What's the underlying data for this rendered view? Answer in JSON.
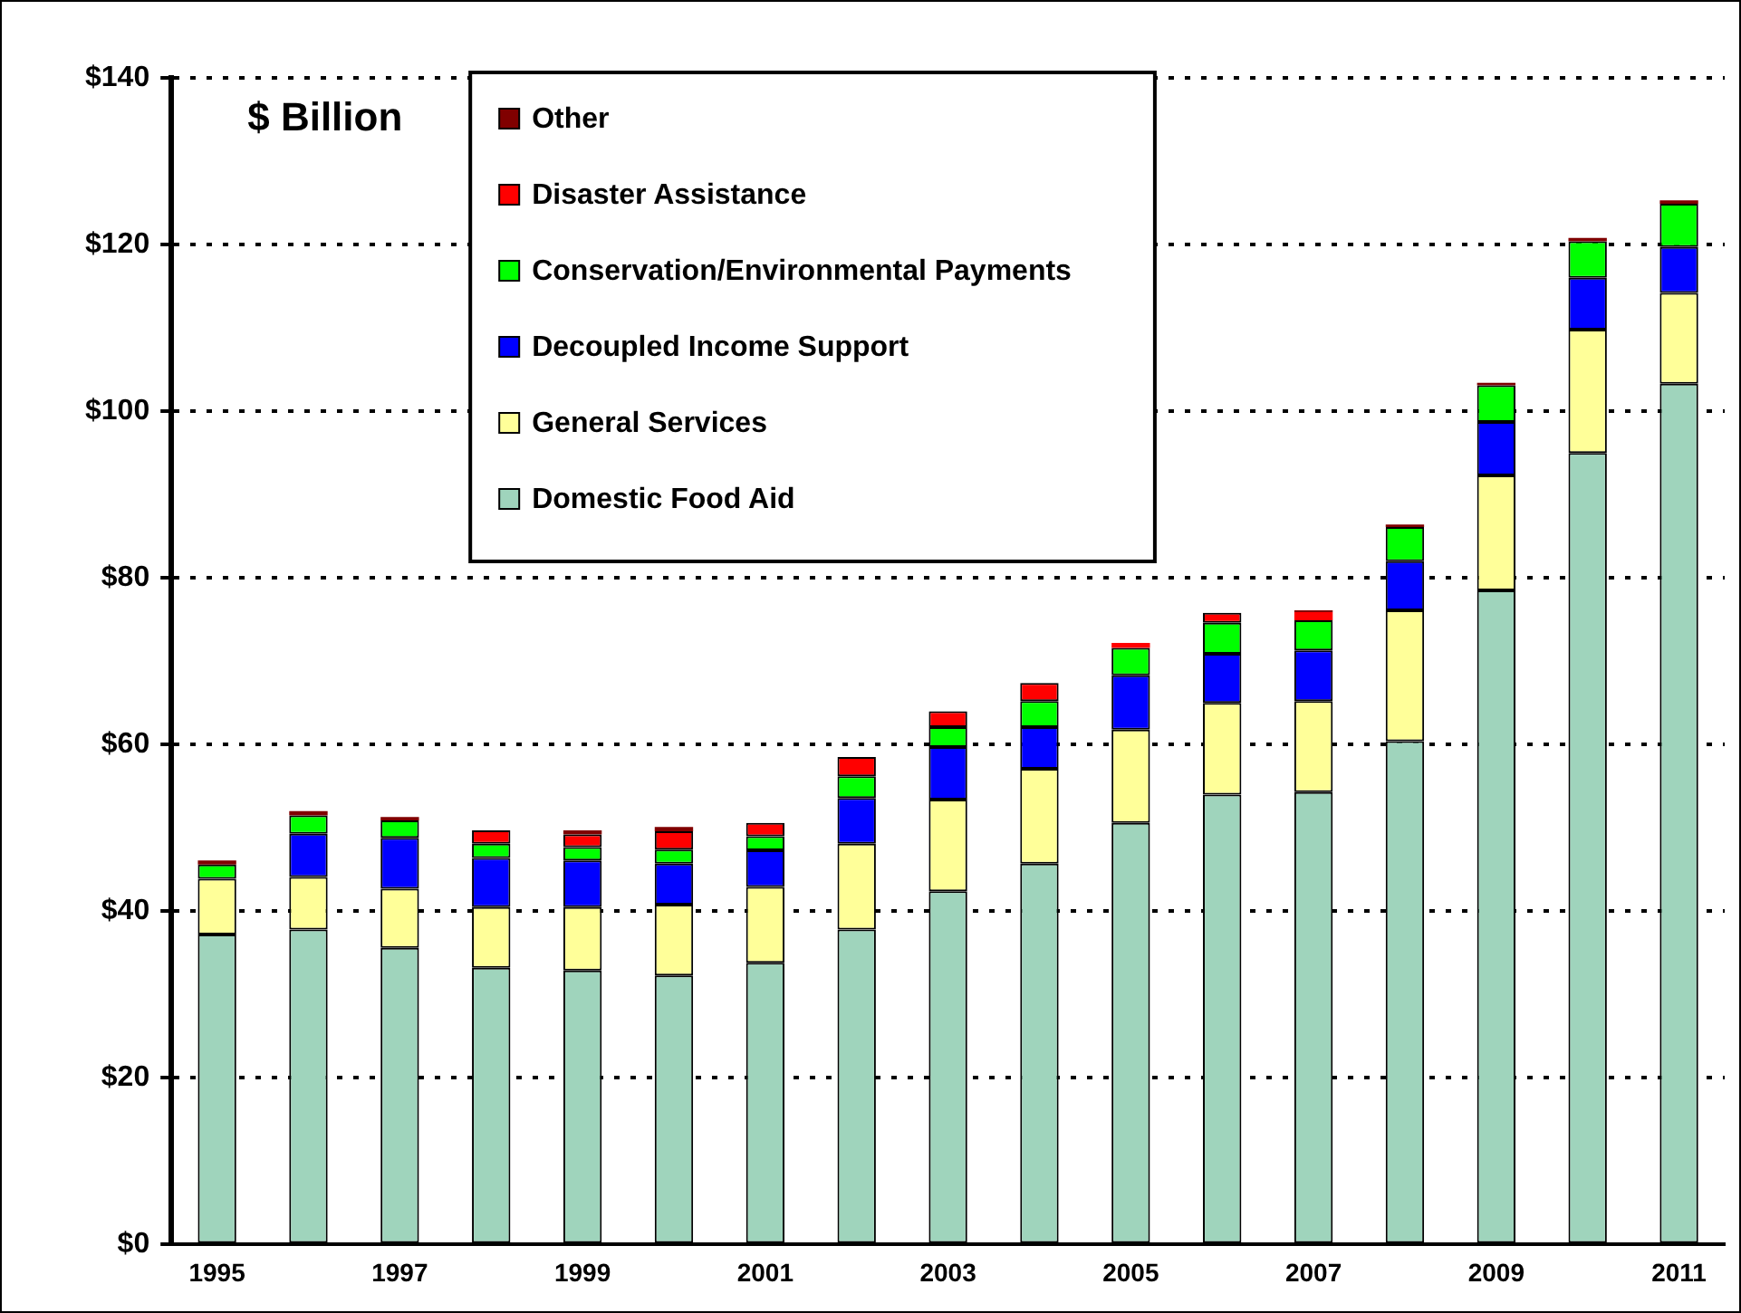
{
  "chart_data": {
    "type": "bar",
    "stacked": true,
    "ylabel": "$ Billion",
    "categories": [
      "1995",
      null,
      "1997",
      null,
      "1999",
      null,
      "2001",
      null,
      "2003",
      null,
      "2005",
      null,
      "2007",
      null,
      "2009",
      null,
      "2011"
    ],
    "series": [
      {
        "name": "Domestic Food Aid",
        "color": "#9fd4bc",
        "values": [
          37.2,
          37.8,
          35.6,
          33.2,
          32.9,
          32.3,
          33.8,
          37.8,
          42.4,
          45.7,
          50.6,
          54.0,
          54.3,
          60.4,
          78.5,
          95.0,
          103.3
        ]
      },
      {
        "name": "General Services",
        "color": "#ffff99",
        "values": [
          6.7,
          6.3,
          7.1,
          7.3,
          7.6,
          8.5,
          9.1,
          10.3,
          11.0,
          11.4,
          11.2,
          11.0,
          10.9,
          15.7,
          13.8,
          14.8,
          10.9
        ]
      },
      {
        "name": "Decoupled Income Support",
        "color": "#0000ff",
        "values": [
          0,
          5.2,
          6.1,
          5.9,
          5.6,
          4.9,
          4.4,
          5.5,
          6.3,
          5.0,
          6.5,
          5.9,
          6.1,
          5.9,
          6.4,
          6.2,
          5.5
        ]
      },
      {
        "name": "Conservation/Environmental Payments",
        "color": "#00ff00",
        "values": [
          1.7,
          2.2,
          2.1,
          1.7,
          1.6,
          1.7,
          1.7,
          2.6,
          2.4,
          3.1,
          3.3,
          3.7,
          3.6,
          4.1,
          4.4,
          4.4,
          5.2
        ]
      },
      {
        "name": "Disaster Assistance",
        "color": "#ff0000",
        "values": [
          0,
          0,
          0,
          1.6,
          1.5,
          2.2,
          1.6,
          2.3,
          1.9,
          2.2,
          0.6,
          1.2,
          1.0,
          0,
          0,
          0,
          0
        ]
      },
      {
        "name": "Other",
        "color": "#800000",
        "values": [
          0.5,
          0.5,
          0.4,
          0,
          0.5,
          0.5,
          0,
          0,
          0,
          0,
          0,
          0,
          0.2,
          0.3,
          0.3,
          0.4,
          0.4
        ]
      }
    ],
    "ylim": [
      0,
      140
    ],
    "yticks": [
      {
        "value": 0,
        "label": "$0"
      },
      {
        "value": 20,
        "label": "$20"
      },
      {
        "value": 40,
        "label": "$40"
      },
      {
        "value": 60,
        "label": "$60"
      },
      {
        "value": 80,
        "label": "$80"
      },
      {
        "value": 100,
        "label": "$100"
      },
      {
        "value": 120,
        "label": "$120"
      },
      {
        "value": 140,
        "label": "$140"
      }
    ],
    "grid": "y",
    "legend": "top"
  }
}
